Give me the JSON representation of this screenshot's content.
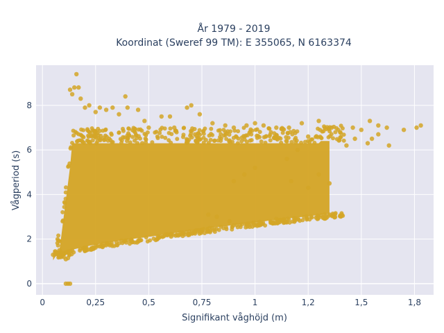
{
  "chart_data": {
    "type": "scatter",
    "title_line1": "År 1979 - 2019",
    "title_line2": "Koordinat (Sweref 99 TM): E 355065, N 6163374",
    "xlabel": "Signifikant våghöjd (m)",
    "ylabel": "Vågperiod (s)",
    "xlim": [
      -0.03,
      1.84
    ],
    "ylim": [
      -0.5,
      9.8
    ],
    "x_ticks": [
      0,
      0.25,
      0.5,
      0.75,
      1,
      1.25,
      1.5,
      1.75
    ],
    "x_tick_labels": [
      "0",
      "0,25",
      "0,5",
      "0,75",
      "1",
      "1,2",
      "1,5",
      "1,8"
    ],
    "y_ticks": [
      0,
      2,
      4,
      6,
      8
    ],
    "y_tick_labels": [
      "0",
      "2",
      "4",
      "6",
      "8"
    ],
    "grid": true,
    "marker_color": "#d4a627",
    "plot_bg": "#e5e5f0",
    "grid_color": "#ffffff",
    "series": [
      {
        "points": [
          [
            0.05,
            1.3
          ],
          [
            0.06,
            1.45
          ],
          [
            0.07,
            1.35
          ],
          [
            0.08,
            1.5
          ],
          [
            0.09,
            1.4
          ],
          [
            0.1,
            1.2
          ],
          [
            0.11,
            1.1
          ],
          [
            0.12,
            1.15
          ],
          [
            0.12,
            0.0
          ],
          [
            0.13,
            0.0
          ],
          [
            0.11,
            0.0
          ],
          [
            0.13,
            8.7
          ],
          [
            0.14,
            8.5
          ],
          [
            0.15,
            8.8
          ],
          [
            0.16,
            9.4
          ],
          [
            0.17,
            8.8
          ],
          [
            0.18,
            8.3
          ],
          [
            0.2,
            7.9
          ],
          [
            0.22,
            8.0
          ],
          [
            0.25,
            7.7
          ],
          [
            0.27,
            7.9
          ],
          [
            0.3,
            7.8
          ],
          [
            0.33,
            7.9
          ],
          [
            0.36,
            7.6
          ],
          [
            0.39,
            8.4
          ],
          [
            0.4,
            7.9
          ],
          [
            0.45,
            7.8
          ],
          [
            0.48,
            7.3
          ],
          [
            0.5,
            7.0
          ],
          [
            0.56,
            7.5
          ],
          [
            0.6,
            7.5
          ],
          [
            0.62,
            7.0
          ],
          [
            0.68,
            7.9
          ],
          [
            0.7,
            8.0
          ],
          [
            0.74,
            7.6
          ],
          [
            0.8,
            7.2
          ],
          [
            0.86,
            7.1
          ],
          [
            0.9,
            7.0
          ],
          [
            0.96,
            7.1
          ],
          [
            1.0,
            7.2
          ],
          [
            1.04,
            7.1
          ],
          [
            1.1,
            7.0
          ],
          [
            1.16,
            7.0
          ],
          [
            1.22,
            7.2
          ],
          [
            1.3,
            7.3
          ],
          [
            1.36,
            7.0
          ],
          [
            1.4,
            6.8
          ],
          [
            1.46,
            7.0
          ],
          [
            1.5,
            6.9
          ],
          [
            1.54,
            7.3
          ],
          [
            1.58,
            7.1
          ],
          [
            1.62,
            7.0
          ],
          [
            1.7,
            6.9
          ],
          [
            1.76,
            7.0
          ],
          [
            1.78,
            7.1
          ],
          [
            1.55,
            6.5
          ],
          [
            1.63,
            6.2
          ],
          [
            1.58,
            6.7
          ],
          [
            1.47,
            6.5
          ],
          [
            1.53,
            6.3
          ],
          [
            1.43,
            6.2
          ],
          [
            1.3,
            4.9
          ],
          [
            1.35,
            4.5
          ],
          [
            1.25,
            4.3
          ],
          [
            1.17,
            4.6
          ],
          [
            1.1,
            2.9
          ],
          [
            0.88,
            2.8
          ],
          [
            0.82,
            3.0
          ],
          [
            0.78,
            3.1
          ],
          [
            1.25,
            6.6
          ],
          [
            1.2,
            6.0
          ],
          [
            1.15,
            5.6
          ],
          [
            1.0,
            5.2
          ],
          [
            0.95,
            4.9
          ],
          [
            0.9,
            4.6
          ]
        ]
      }
    ]
  }
}
